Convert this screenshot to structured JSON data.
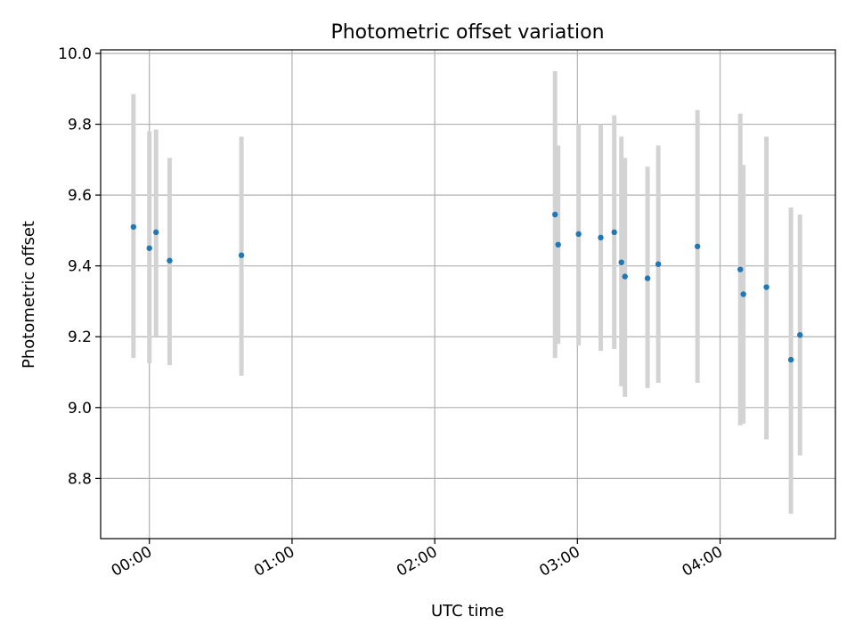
{
  "chart_data": {
    "type": "scatter",
    "title": "Photometric offset variation",
    "xlabel": "UTC time",
    "ylabel": "Photometric offset",
    "x_unit": "minutes since 00:00 UTC",
    "xlim": [
      -20.5,
      288.5
    ],
    "ylim": [
      8.63,
      10.01
    ],
    "xticks": [
      {
        "value": 0,
        "label": "00:00"
      },
      {
        "value": 60,
        "label": "01:00"
      },
      {
        "value": 120,
        "label": "02:00"
      },
      {
        "value": 180,
        "label": "03:00"
      },
      {
        "value": 240,
        "label": "04:00"
      }
    ],
    "yticks": [
      {
        "value": 8.8,
        "label": "8.8"
      },
      {
        "value": 9.0,
        "label": "9.0"
      },
      {
        "value": 9.2,
        "label": "9.2"
      },
      {
        "value": 9.4,
        "label": "9.4"
      },
      {
        "value": 9.6,
        "label": "9.6"
      },
      {
        "value": 9.8,
        "label": "9.8"
      },
      {
        "value": 10.0,
        "label": "10.0"
      }
    ],
    "grid": true,
    "colors": {
      "marker": "#1f77b4",
      "errorbar": "#d3d3d3",
      "grid": "#b0b0b0",
      "axes": "#000000"
    },
    "points": [
      {
        "x": -6.7,
        "y": 9.51,
        "yerr_low": 9.14,
        "yerr_high": 9.885
      },
      {
        "x": 0.0,
        "y": 9.45,
        "yerr_low": 9.125,
        "yerr_high": 9.78
      },
      {
        "x": 2.8,
        "y": 9.495,
        "yerr_low": 9.2,
        "yerr_high": 9.785
      },
      {
        "x": 8.5,
        "y": 9.415,
        "yerr_low": 9.12,
        "yerr_high": 9.705
      },
      {
        "x": 38.7,
        "y": 9.43,
        "yerr_low": 9.09,
        "yerr_high": 9.765
      },
      {
        "x": 170.6,
        "y": 9.545,
        "yerr_low": 9.14,
        "yerr_high": 9.95
      },
      {
        "x": 171.9,
        "y": 9.46,
        "yerr_low": 9.18,
        "yerr_high": 9.74
      },
      {
        "x": 180.5,
        "y": 9.49,
        "yerr_low": 9.175,
        "yerr_high": 9.8
      },
      {
        "x": 189.8,
        "y": 9.48,
        "yerr_low": 9.16,
        "yerr_high": 9.8
      },
      {
        "x": 195.5,
        "y": 9.495,
        "yerr_low": 9.165,
        "yerr_high": 9.825
      },
      {
        "x": 198.5,
        "y": 9.41,
        "yerr_low": 9.06,
        "yerr_high": 9.765
      },
      {
        "x": 200.0,
        "y": 9.37,
        "yerr_low": 9.03,
        "yerr_high": 9.705
      },
      {
        "x": 209.5,
        "y": 9.365,
        "yerr_low": 9.055,
        "yerr_high": 9.68
      },
      {
        "x": 214.0,
        "y": 9.405,
        "yerr_low": 9.07,
        "yerr_high": 9.74
      },
      {
        "x": 230.5,
        "y": 9.455,
        "yerr_low": 9.07,
        "yerr_high": 9.84
      },
      {
        "x": 248.5,
        "y": 9.39,
        "yerr_low": 8.95,
        "yerr_high": 9.83
      },
      {
        "x": 249.8,
        "y": 9.32,
        "yerr_low": 8.955,
        "yerr_high": 9.685
      },
      {
        "x": 259.5,
        "y": 9.34,
        "yerr_low": 8.91,
        "yerr_high": 9.765
      },
      {
        "x": 269.8,
        "y": 9.135,
        "yerr_low": 8.7,
        "yerr_high": 9.565
      },
      {
        "x": 273.6,
        "y": 9.205,
        "yerr_low": 8.865,
        "yerr_high": 9.545
      }
    ]
  }
}
